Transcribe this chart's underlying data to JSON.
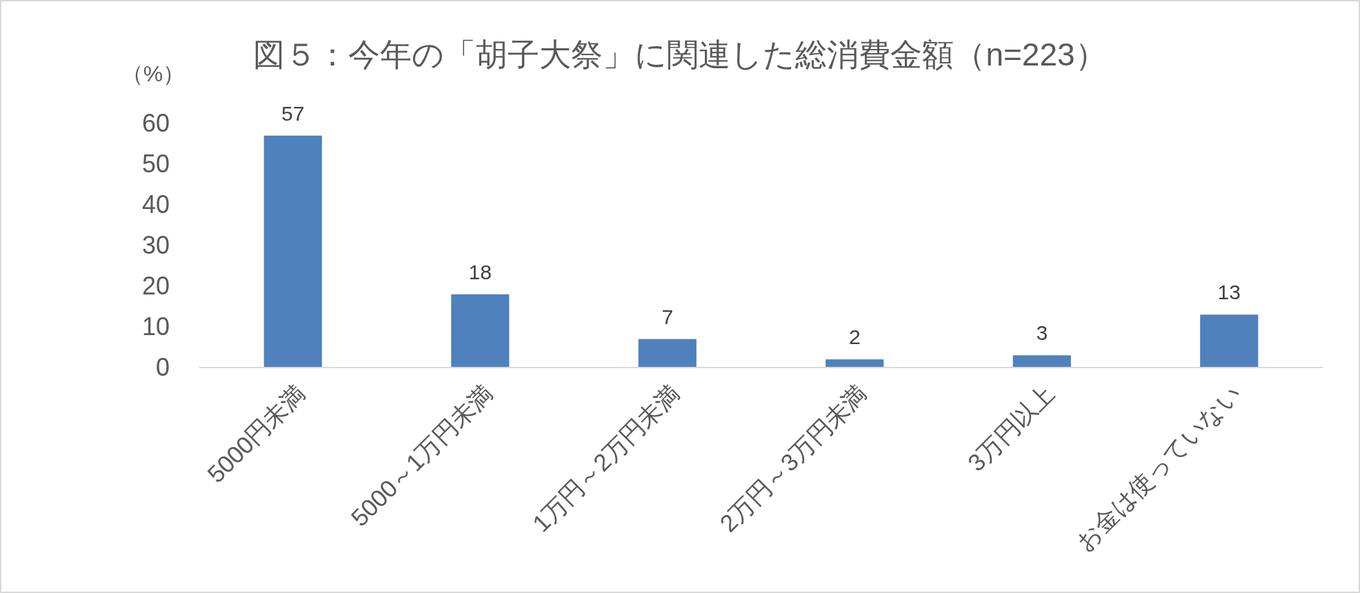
{
  "chart_data": {
    "type": "bar",
    "title": "図５：今年の「胡子大祭」に関連した総消費金額（n=223）",
    "ylabel": "（%）",
    "categories": [
      "5000円未満",
      "5000～1万円未満",
      "1万円～2万円未満",
      "2万円～3万円未満",
      "3万円以上",
      "お金は使っていない"
    ],
    "values": [
      57,
      18,
      7,
      2,
      3,
      13
    ],
    "color": "#4f81bd",
    "ylim": [
      0,
      60
    ],
    "yticks": [
      0,
      10,
      20,
      30,
      40,
      50,
      60
    ],
    "data_labels": true
  }
}
